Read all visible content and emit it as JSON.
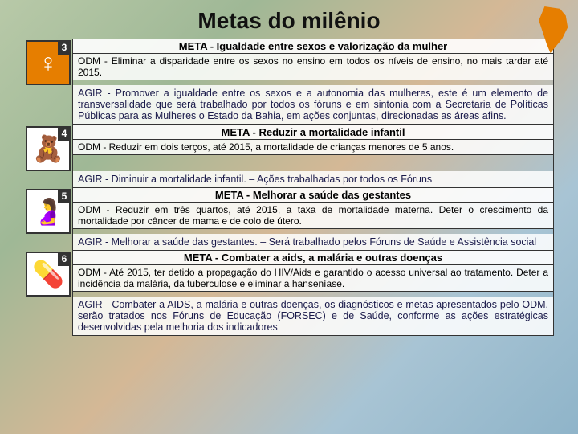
{
  "title": "Metas do milênio",
  "colors": {
    "accent_orange": "#e67e00",
    "text_primary": "#111111",
    "text_agir": "#1a1a4a",
    "border": "#333333"
  },
  "goals": [
    {
      "num": "3",
      "icon": "female-symbol-icon",
      "icon_bg": "#e67e00",
      "meta": "META - Igualdade entre sexos e valorização da mulher",
      "odm": "ODM - Eliminar a disparidade entre os sexos no ensino em todos os níveis de ensino, no mais tardar até 2015.",
      "agir": "AGIR - Promover a igualdade entre os sexos e a autonomia das mulheres, este é um elemento de transversalidade que será trabalhado por todos os fóruns e em sintonia com a Secretaria de Políticas Públicas para as Mulheres o Estado da Bahia, em ações conjuntas, direcionadas as áreas afins."
    },
    {
      "num": "4",
      "icon": "teddy-bear-icon",
      "icon_bg": "#ffffff",
      "meta": "META - Reduzir a mortalidade infantil",
      "odm": "ODM - Reduzir em dois terços, até 2015, a mortalidade de crianças menores de 5 anos.",
      "agir": "AGIR - Diminuir a mortalidade infantil. – Ações trabalhadas por todos os Fóruns"
    },
    {
      "num": "5",
      "icon": "pregnant-woman-icon",
      "icon_bg": "#ffffff",
      "meta": "META - Melhorar a saúde das gestantes",
      "odm": "ODM - Reduzir em três quartos, até 2015, a taxa de mortalidade materna. Deter o crescimento da mortalidade por câncer de mama e de colo de útero.",
      "agir": "AGIR -  Melhorar a saúde das gestantes. – Será trabalhado pelos Fóruns de Saúde e Assistência social"
    },
    {
      "num": "6",
      "icon": "medicine-bottle-icon",
      "icon_bg": "#ffffff",
      "meta": "META - Combater a aids, a malária e outras doenças",
      "odm": "ODM - Até 2015, ter detido a propagação do HIV/Aids e garantido o acesso universal ao tratamento. Deter a incidência da malária, da tuberculose e eliminar a hanseníase.",
      "agir": "AGIR - Combater a AIDS, a malária e outras doenças, os diagnósticos e metas apresentados pelo ODM, serão tratados nos Fóruns de Educação (FORSEC) e de Saúde, conforme as ações estratégicas desenvolvidas pela melhoria dos indicadores"
    }
  ]
}
